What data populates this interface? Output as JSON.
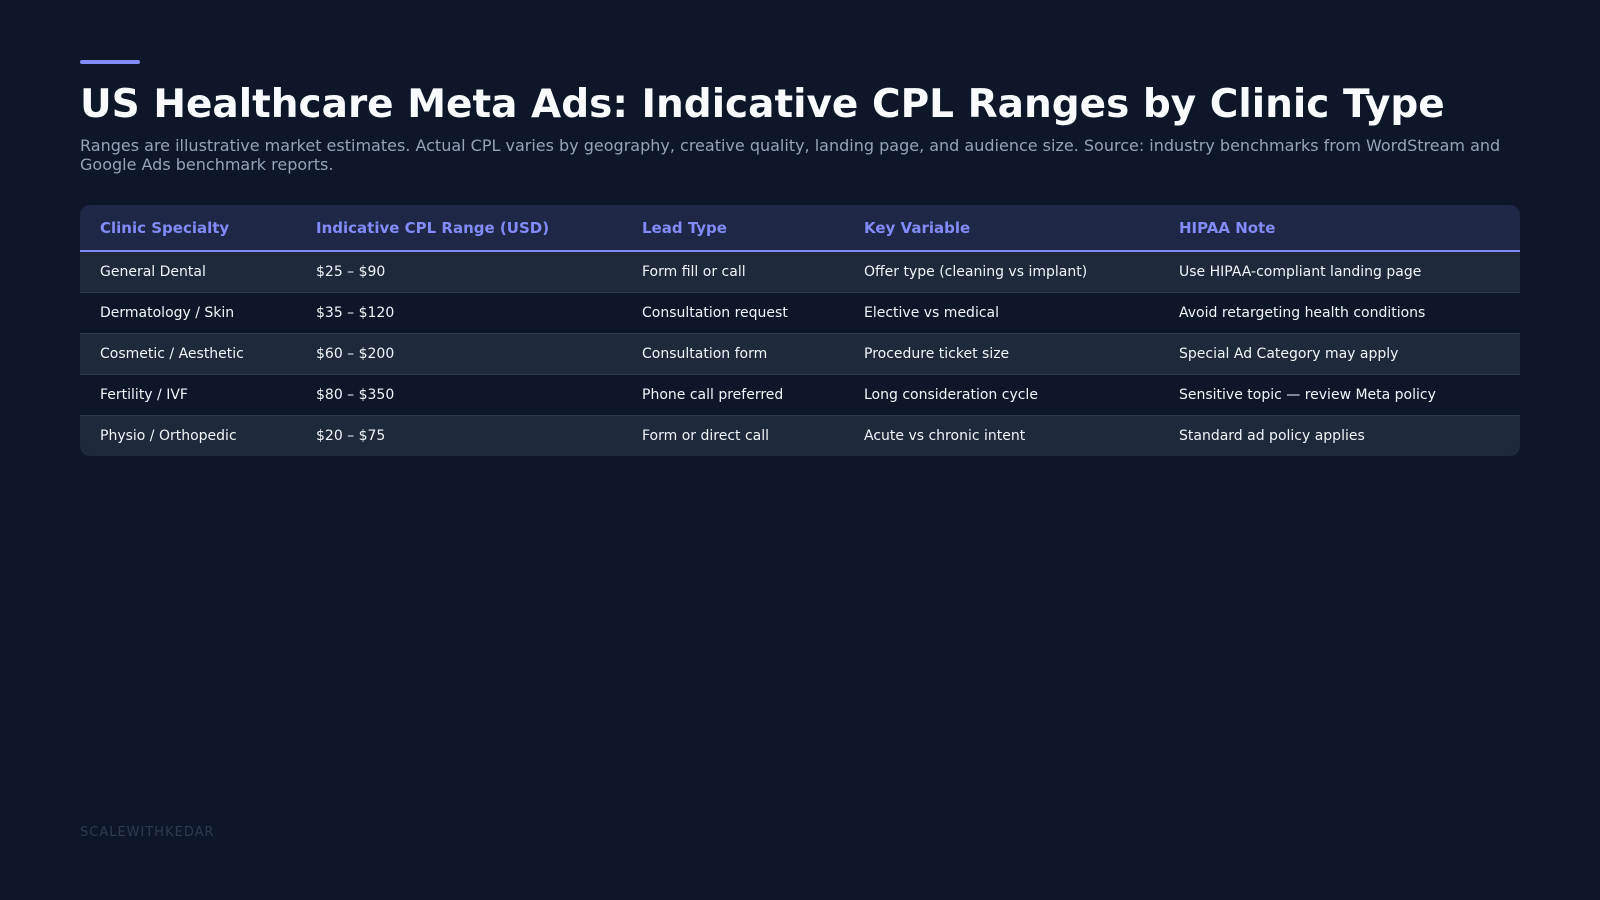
{
  "header": {
    "title": "US Healthcare Meta Ads: Indicative CPL Ranges by Clinic Type",
    "subtitle": "Ranges are illustrative market estimates. Actual CPL varies by geography, creative quality, landing page, and audience size. Source: industry benchmarks from WordStream and Google Ads benchmark reports."
  },
  "colors": {
    "background": "#0e172a",
    "accent": "#818cf8",
    "header_row": "#1e2746",
    "row_alt": "#1e293b"
  },
  "chart_data": {
    "type": "table",
    "columns": [
      "Clinic Specialty",
      "Indicative CPL Range (USD)",
      "Lead Type",
      "Key Variable",
      "HIPAA Note"
    ],
    "rows": [
      [
        "General Dental",
        "$25 – $90",
        "Form fill or call",
        "Offer type (cleaning vs implant)",
        "Use HIPAA-compliant landing page"
      ],
      [
        "Dermatology / Skin",
        "$35 – $120",
        "Consultation request",
        "Elective vs medical",
        "Avoid retargeting health conditions"
      ],
      [
        "Cosmetic / Aesthetic",
        "$60 – $200",
        "Consultation form",
        "Procedure ticket size",
        "Special Ad Category may apply"
      ],
      [
        "Fertility / IVF",
        "$80 – $350",
        "Phone call preferred",
        "Long consideration cycle",
        "Sensitive topic — review Meta policy"
      ],
      [
        "Physio / Orthopedic",
        "$20 – $75",
        "Form or direct call",
        "Acute vs chronic intent",
        "Standard ad policy applies"
      ]
    ]
  },
  "footer": {
    "brand": "SCALEWITHKEDAR"
  }
}
